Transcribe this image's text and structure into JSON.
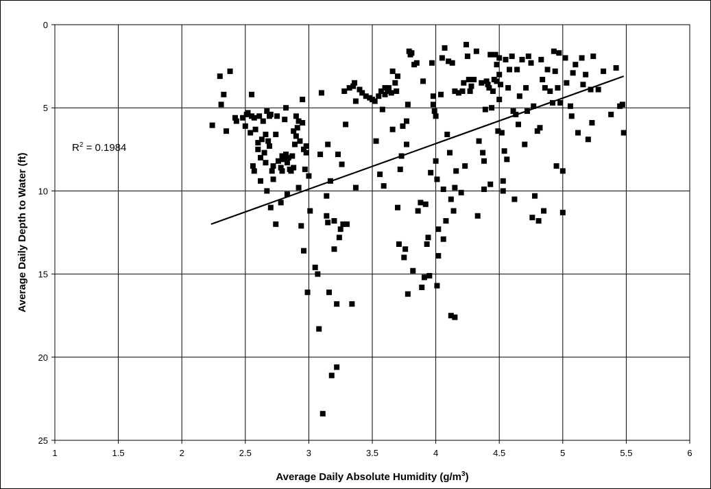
{
  "chart_data": {
    "type": "scatter",
    "title": "",
    "xlabel": "Average Daily Absolute Humidity (g/m",
    "xlabel_sup": "3",
    "xlabel_end": ")",
    "ylabel": "Average Daily Depth to Water (ft)",
    "xlim": [
      1,
      6
    ],
    "ylim": [
      0,
      25
    ],
    "y_inverted": true,
    "grid": true,
    "legend": "none",
    "x_ticks": [
      "1",
      "1.5",
      "2",
      "2.5",
      "3",
      "3.5",
      "4",
      "4.5",
      "5",
      "5.5",
      "6"
    ],
    "y_ticks": [
      "0",
      "5",
      "10",
      "15",
      "20",
      "25"
    ],
    "marker_color": "#000000",
    "annotation": {
      "prefix": "R",
      "sup": "2",
      "suffix": " = 0.1984"
    },
    "trendline": {
      "x": [
        2.23,
        5.48
      ],
      "y": [
        12.0,
        3.1
      ]
    },
    "series": [
      {
        "points": [
          [
            2.24,
            6.05
          ],
          [
            2.3,
            3.1
          ],
          [
            2.31,
            4.8
          ],
          [
            2.33,
            4.2
          ],
          [
            2.35,
            6.4
          ],
          [
            2.38,
            2.8
          ],
          [
            2.42,
            5.6
          ],
          [
            2.43,
            5.8
          ],
          [
            2.48,
            5.6
          ],
          [
            2.5,
            6.1
          ],
          [
            2.51,
            5.4
          ],
          [
            2.52,
            5.3
          ],
          [
            2.54,
            6.5
          ],
          [
            2.55,
            4.2
          ],
          [
            2.55,
            5.5
          ],
          [
            2.56,
            8.5
          ],
          [
            2.57,
            8.8
          ],
          [
            2.57,
            5.6
          ],
          [
            2.58,
            6.3
          ],
          [
            2.6,
            7.1
          ],
          [
            2.6,
            7.5
          ],
          [
            2.61,
            5.5
          ],
          [
            2.62,
            8.0
          ],
          [
            2.62,
            9.4
          ],
          [
            2.63,
            6.9
          ],
          [
            2.64,
            5.8
          ],
          [
            2.65,
            7.7
          ],
          [
            2.66,
            8.3
          ],
          [
            2.66,
            6.6
          ],
          [
            2.67,
            10.0
          ],
          [
            2.67,
            5.2
          ],
          [
            2.68,
            7.0
          ],
          [
            2.69,
            5.5
          ],
          [
            2.69,
            7.3
          ],
          [
            2.7,
            11.0
          ],
          [
            2.7,
            5.4
          ],
          [
            2.71,
            8.8
          ],
          [
            2.72,
            9.3
          ],
          [
            2.72,
            8.5
          ],
          [
            2.74,
            12.0
          ],
          [
            2.74,
            6.6
          ],
          [
            2.75,
            5.5
          ],
          [
            2.76,
            8.2
          ],
          [
            2.78,
            10.7
          ],
          [
            2.78,
            8.6
          ],
          [
            2.79,
            8.8
          ],
          [
            2.79,
            7.9
          ],
          [
            2.8,
            8.1
          ],
          [
            2.81,
            5.7
          ],
          [
            2.82,
            7.8
          ],
          [
            2.82,
            5.0
          ],
          [
            2.83,
            10.2
          ],
          [
            2.83,
            8.3
          ],
          [
            2.84,
            8.0
          ],
          [
            2.85,
            8.7
          ],
          [
            2.86,
            8.8
          ],
          [
            2.87,
            7.9
          ],
          [
            2.88,
            8.6
          ],
          [
            2.88,
            6.4
          ],
          [
            2.89,
            7.2
          ],
          [
            2.9,
            5.5
          ],
          [
            2.9,
            6.7
          ],
          [
            2.91,
            6.2
          ],
          [
            2.92,
            9.8
          ],
          [
            2.92,
            5.8
          ],
          [
            2.93,
            7.0
          ],
          [
            2.94,
            12.1
          ],
          [
            2.95,
            4.5
          ],
          [
            2.95,
            5.9
          ],
          [
            2.96,
            13.6
          ],
          [
            2.96,
            7.5
          ],
          [
            2.97,
            8.7
          ],
          [
            2.98,
            7.3
          ],
          [
            2.98,
            7.7
          ],
          [
            2.99,
            16.1
          ],
          [
            3.0,
            9.1
          ],
          [
            3.01,
            11.2
          ],
          [
            3.05,
            14.6
          ],
          [
            3.07,
            15.0
          ],
          [
            3.08,
            18.3
          ],
          [
            3.09,
            7.8
          ],
          [
            3.1,
            4.1
          ],
          [
            3.11,
            23.4
          ],
          [
            3.14,
            10.3
          ],
          [
            3.14,
            11.5
          ],
          [
            3.15,
            11.9
          ],
          [
            3.15,
            7.2
          ],
          [
            3.16,
            16.1
          ],
          [
            3.17,
            9.4
          ],
          [
            3.18,
            21.1
          ],
          [
            3.2,
            11.8
          ],
          [
            3.2,
            13.5
          ],
          [
            3.22,
            20.6
          ],
          [
            3.22,
            16.8
          ],
          [
            3.23,
            7.8
          ],
          [
            3.24,
            12.8
          ],
          [
            3.25,
            12.3
          ],
          [
            3.26,
            8.4
          ],
          [
            3.27,
            12.0
          ],
          [
            3.28,
            4.0
          ],
          [
            3.29,
            6.0
          ],
          [
            3.3,
            12.0
          ],
          [
            3.32,
            3.8
          ],
          [
            3.34,
            16.8
          ],
          [
            3.35,
            3.7
          ],
          [
            3.36,
            3.5
          ],
          [
            3.37,
            9.8
          ],
          [
            3.37,
            4.6
          ],
          [
            3.4,
            3.9
          ],
          [
            3.42,
            4.1
          ],
          [
            3.45,
            4.3
          ],
          [
            3.48,
            4.4
          ],
          [
            3.5,
            4.5
          ],
          [
            3.52,
            4.6
          ],
          [
            3.53,
            7.0
          ],
          [
            3.55,
            4.3
          ],
          [
            3.56,
            9.0
          ],
          [
            3.57,
            4.0
          ],
          [
            3.58,
            5.1
          ],
          [
            3.59,
            9.7
          ],
          [
            3.6,
            4.2
          ],
          [
            3.6,
            3.8
          ],
          [
            3.62,
            4.0
          ],
          [
            3.63,
            3.8
          ],
          [
            3.65,
            4.1
          ],
          [
            3.66,
            6.3
          ],
          [
            3.66,
            2.8
          ],
          [
            3.68,
            3.5
          ],
          [
            3.69,
            4.0
          ],
          [
            3.7,
            11.0
          ],
          [
            3.7,
            3.1
          ],
          [
            3.71,
            13.2
          ],
          [
            3.72,
            8.7
          ],
          [
            3.73,
            7.9
          ],
          [
            3.74,
            6.1
          ],
          [
            3.75,
            14.0
          ],
          [
            3.76,
            13.5
          ],
          [
            3.77,
            5.8
          ],
          [
            3.77,
            7.2
          ],
          [
            3.78,
            16.2
          ],
          [
            3.78,
            4.8
          ],
          [
            3.79,
            1.6
          ],
          [
            3.8,
            1.8
          ],
          [
            3.81,
            1.7
          ],
          [
            3.82,
            14.8
          ],
          [
            3.83,
            2.4
          ],
          [
            3.85,
            2.3
          ],
          [
            3.86,
            11.2
          ],
          [
            3.88,
            10.7
          ],
          [
            3.89,
            15.8
          ],
          [
            3.9,
            3.4
          ],
          [
            3.91,
            15.2
          ],
          [
            3.92,
            10.8
          ],
          [
            3.93,
            13.2
          ],
          [
            3.94,
            12.8
          ],
          [
            3.95,
            15.1
          ],
          [
            3.96,
            8.9
          ],
          [
            3.97,
            2.3
          ],
          [
            3.98,
            4.3
          ],
          [
            3.98,
            4.8
          ],
          [
            3.99,
            5.2
          ],
          [
            4.0,
            5.5
          ],
          [
            4.0,
            8.2
          ],
          [
            4.01,
            9.3
          ],
          [
            4.01,
            15.7
          ],
          [
            4.02,
            13.9
          ],
          [
            4.02,
            12.3
          ],
          [
            4.04,
            4.2
          ],
          [
            4.05,
            2.0
          ],
          [
            4.06,
            9.9
          ],
          [
            4.06,
            12.9
          ],
          [
            4.07,
            1.4
          ],
          [
            4.08,
            11.8
          ],
          [
            4.09,
            6.6
          ],
          [
            4.1,
            2.2
          ],
          [
            4.11,
            7.7
          ],
          [
            4.12,
            17.5
          ],
          [
            4.12,
            10.5
          ],
          [
            4.13,
            2.3
          ],
          [
            4.14,
            11.2
          ],
          [
            4.15,
            9.8
          ],
          [
            4.15,
            17.6
          ],
          [
            4.15,
            4.0
          ],
          [
            4.16,
            8.8
          ],
          [
            4.18,
            4.1
          ],
          [
            4.2,
            10.1
          ],
          [
            4.21,
            4.0
          ],
          [
            4.22,
            3.5
          ],
          [
            4.23,
            8.5
          ],
          [
            4.24,
            1.2
          ],
          [
            4.25,
            1.9
          ],
          [
            4.26,
            3.3
          ],
          [
            4.27,
            4.0
          ],
          [
            4.28,
            3.7
          ],
          [
            4.3,
            3.3
          ],
          [
            4.32,
            1.6
          ],
          [
            4.33,
            11.5
          ],
          [
            4.34,
            7.0
          ],
          [
            4.36,
            3.5
          ],
          [
            4.37,
            7.7
          ],
          [
            4.38,
            9.9
          ],
          [
            4.38,
            8.2
          ],
          [
            4.39,
            5.1
          ],
          [
            4.4,
            3.4
          ],
          [
            4.41,
            3.6
          ],
          [
            4.42,
            3.8
          ],
          [
            4.43,
            1.8
          ],
          [
            4.43,
            9.6
          ],
          [
            4.44,
            5.0
          ],
          [
            4.45,
            4.0
          ],
          [
            4.46,
            3.3
          ],
          [
            4.47,
            1.8
          ],
          [
            4.48,
            3.4
          ],
          [
            4.48,
            2.4
          ],
          [
            4.49,
            6.4
          ],
          [
            4.5,
            4.5
          ],
          [
            4.5,
            2.0
          ],
          [
            4.5,
            3.0
          ],
          [
            4.51,
            3.6
          ],
          [
            4.52,
            6.5
          ],
          [
            4.53,
            9.4
          ],
          [
            4.53,
            10.0
          ],
          [
            4.54,
            7.6
          ],
          [
            4.55,
            2.1
          ],
          [
            4.56,
            8.1
          ],
          [
            4.57,
            3.8
          ],
          [
            4.58,
            2.7
          ],
          [
            4.6,
            1.9
          ],
          [
            4.61,
            5.2
          ],
          [
            4.62,
            10.5
          ],
          [
            4.63,
            5.4
          ],
          [
            4.64,
            2.7
          ],
          [
            4.65,
            6.0
          ],
          [
            4.66,
            4.3
          ],
          [
            4.68,
            2.1
          ],
          [
            4.7,
            7.2
          ],
          [
            4.71,
            3.8
          ],
          [
            4.72,
            5.2
          ],
          [
            4.73,
            1.9
          ],
          [
            4.75,
            2.3
          ],
          [
            4.76,
            11.6
          ],
          [
            4.77,
            4.9
          ],
          [
            4.78,
            10.3
          ],
          [
            4.8,
            6.4
          ],
          [
            4.81,
            11.8
          ],
          [
            4.82,
            6.2
          ],
          [
            4.83,
            2.1
          ],
          [
            4.84,
            3.3
          ],
          [
            4.85,
            11.2
          ],
          [
            4.86,
            3.8
          ],
          [
            4.88,
            2.7
          ],
          [
            4.9,
            4.0
          ],
          [
            4.92,
            4.7
          ],
          [
            4.93,
            1.6
          ],
          [
            4.94,
            2.8
          ],
          [
            4.95,
            8.5
          ],
          [
            4.96,
            3.8
          ],
          [
            4.97,
            1.7
          ],
          [
            4.98,
            4.7
          ],
          [
            5.0,
            8.8
          ],
          [
            5.0,
            11.3
          ],
          [
            5.02,
            2.0
          ],
          [
            5.03,
            3.5
          ],
          [
            5.06,
            4.9
          ],
          [
            5.07,
            5.5
          ],
          [
            5.08,
            2.9
          ],
          [
            5.1,
            2.4
          ],
          [
            5.12,
            6.5
          ],
          [
            5.15,
            2.0
          ],
          [
            5.16,
            3.6
          ],
          [
            5.18,
            3.0
          ],
          [
            5.2,
            6.9
          ],
          [
            5.22,
            3.9
          ],
          [
            5.23,
            5.9
          ],
          [
            5.24,
            1.9
          ],
          [
            5.28,
            3.9
          ],
          [
            5.32,
            2.8
          ],
          [
            5.38,
            5.4
          ],
          [
            5.42,
            2.6
          ],
          [
            5.45,
            4.9
          ],
          [
            5.47,
            4.8
          ],
          [
            5.48,
            6.5
          ]
        ]
      }
    ]
  }
}
